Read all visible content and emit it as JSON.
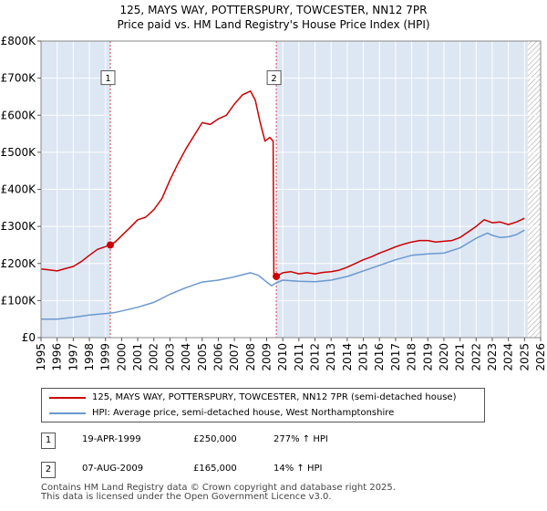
{
  "title_line1": "125, MAYS WAY, POTTERSPURY, TOWCESTER, NN12 7PR",
  "title_line2": "Price paid vs. HM Land Registry's House Price Index (HPI)",
  "chart_data": {
    "type": "line",
    "xlim": [
      1995,
      2026
    ],
    "ylim": [
      0,
      800000
    ],
    "x_ticks": [
      1995,
      1996,
      1997,
      1998,
      1999,
      2000,
      2001,
      2002,
      2003,
      2004,
      2005,
      2006,
      2007,
      2008,
      2009,
      2010,
      2011,
      2012,
      2013,
      2014,
      2015,
      2016,
      2017,
      2018,
      2019,
      2020,
      2021,
      2022,
      2023,
      2024,
      2025,
      2026
    ],
    "y_ticks": [
      {
        "value": 0,
        "label": "£0"
      },
      {
        "value": 100000,
        "label": "£100K"
      },
      {
        "value": 200000,
        "label": "£200K"
      },
      {
        "value": 300000,
        "label": "£300K"
      },
      {
        "value": 400000,
        "label": "£400K"
      },
      {
        "value": 500000,
        "label": "£500K"
      },
      {
        "value": 600000,
        "label": "£600K"
      },
      {
        "value": 700000,
        "label": "£700K"
      },
      {
        "value": 800000,
        "label": "£800K"
      }
    ],
    "shaded_ranges": [
      [
        1995,
        1999.3
      ],
      [
        2009.6,
        2025.2
      ]
    ],
    "hatched_range": [
      2025.2,
      2026
    ],
    "series": [
      {
        "name": "125, MAYS WAY, POTTERSPURY, TOWCESTER, NN12 7PR (semi-detached house)",
        "color": "#cc0000",
        "points": [
          [
            1995.0,
            185000
          ],
          [
            1995.5,
            183000
          ],
          [
            1996.0,
            180000
          ],
          [
            1996.5,
            186000
          ],
          [
            1997.0,
            192000
          ],
          [
            1997.5,
            205000
          ],
          [
            1998.0,
            222000
          ],
          [
            1998.5,
            238000
          ],
          [
            1999.3,
            250000
          ],
          [
            1999.6,
            258000
          ],
          [
            2000.0,
            275000
          ],
          [
            2000.5,
            296000
          ],
          [
            2001.0,
            318000
          ],
          [
            2001.5,
            325000
          ],
          [
            2002.0,
            345000
          ],
          [
            2002.5,
            375000
          ],
          [
            2003.0,
            425000
          ],
          [
            2003.5,
            470000
          ],
          [
            2004.0,
            510000
          ],
          [
            2004.5,
            545000
          ],
          [
            2005.0,
            580000
          ],
          [
            2005.5,
            575000
          ],
          [
            2006.0,
            590000
          ],
          [
            2006.5,
            600000
          ],
          [
            2007.0,
            630000
          ],
          [
            2007.5,
            655000
          ],
          [
            2008.0,
            665000
          ],
          [
            2008.3,
            640000
          ],
          [
            2008.6,
            580000
          ],
          [
            2008.9,
            530000
          ],
          [
            2009.2,
            540000
          ],
          [
            2009.4,
            530000
          ],
          [
            2009.45,
            170000
          ],
          [
            2009.6,
            165000
          ],
          [
            2010.0,
            175000
          ],
          [
            2010.5,
            178000
          ],
          [
            2011.0,
            172000
          ],
          [
            2011.5,
            175000
          ],
          [
            2012.0,
            172000
          ],
          [
            2012.5,
            176000
          ],
          [
            2013.0,
            178000
          ],
          [
            2013.5,
            182000
          ],
          [
            2014.0,
            190000
          ],
          [
            2014.5,
            200000
          ],
          [
            2015.0,
            210000
          ],
          [
            2015.5,
            218000
          ],
          [
            2016.0,
            228000
          ],
          [
            2016.5,
            236000
          ],
          [
            2017.0,
            245000
          ],
          [
            2017.5,
            252000
          ],
          [
            2018.0,
            258000
          ],
          [
            2018.5,
            262000
          ],
          [
            2019.0,
            262000
          ],
          [
            2019.5,
            258000
          ],
          [
            2020.0,
            260000
          ],
          [
            2020.5,
            262000
          ],
          [
            2021.0,
            270000
          ],
          [
            2021.5,
            285000
          ],
          [
            2022.0,
            300000
          ],
          [
            2022.5,
            318000
          ],
          [
            2023.0,
            310000
          ],
          [
            2023.5,
            312000
          ],
          [
            2024.0,
            305000
          ],
          [
            2024.5,
            312000
          ],
          [
            2025.0,
            322000
          ]
        ]
      },
      {
        "name": "HPI: Average price, semi-detached house, West Northamptonshire",
        "color": "#6a99d0",
        "points": [
          [
            1995.0,
            50000
          ],
          [
            1996.0,
            50000
          ],
          [
            1997.0,
            55000
          ],
          [
            1998.0,
            61000
          ],
          [
            1999.0,
            65000
          ],
          [
            1999.5,
            67000
          ],
          [
            2000.0,
            72000
          ],
          [
            2001.0,
            82000
          ],
          [
            2002.0,
            95000
          ],
          [
            2003.0,
            117000
          ],
          [
            2004.0,
            135000
          ],
          [
            2005.0,
            150000
          ],
          [
            2006.0,
            155000
          ],
          [
            2007.0,
            164000
          ],
          [
            2008.0,
            175000
          ],
          [
            2008.5,
            168000
          ],
          [
            2009.0,
            150000
          ],
          [
            2009.3,
            140000
          ],
          [
            2009.6,
            148000
          ],
          [
            2010.0,
            155000
          ],
          [
            2011.0,
            152000
          ],
          [
            2012.0,
            151000
          ],
          [
            2013.0,
            155000
          ],
          [
            2014.0,
            165000
          ],
          [
            2015.0,
            180000
          ],
          [
            2016.0,
            195000
          ],
          [
            2017.0,
            210000
          ],
          [
            2018.0,
            222000
          ],
          [
            2019.0,
            226000
          ],
          [
            2020.0,
            228000
          ],
          [
            2021.0,
            242000
          ],
          [
            2022.0,
            268000
          ],
          [
            2022.7,
            282000
          ],
          [
            2023.0,
            276000
          ],
          [
            2023.5,
            270000
          ],
          [
            2024.0,
            272000
          ],
          [
            2024.5,
            278000
          ],
          [
            2025.0,
            290000
          ]
        ]
      }
    ],
    "annotations": [
      {
        "label": "1",
        "x": 1999.3,
        "y": 250000,
        "box_value": 700000
      },
      {
        "label": "2",
        "x": 2009.6,
        "y": 165000,
        "box_value": 700000
      }
    ]
  },
  "legend": [
    {
      "label": "125, MAYS WAY, POTTERSPURY, TOWCESTER, NN12 7PR (semi-detached house)",
      "color": "#cc0000"
    },
    {
      "label": "HPI: Average price, semi-detached house, West Northamptonshire",
      "color": "#6a99d0"
    }
  ],
  "transactions": [
    {
      "num": "1",
      "date": "19-APR-1999",
      "price": "£250,000",
      "hpi": "277% ↑ HPI"
    },
    {
      "num": "2",
      "date": "07-AUG-2009",
      "price": "£165,000",
      "hpi": "14% ↑ HPI"
    }
  ],
  "footer_line1": "Contains HM Land Registry data © Crown copyright and database right 2025.",
  "footer_line2": "This data is licensed under the Open Government Licence v3.0."
}
